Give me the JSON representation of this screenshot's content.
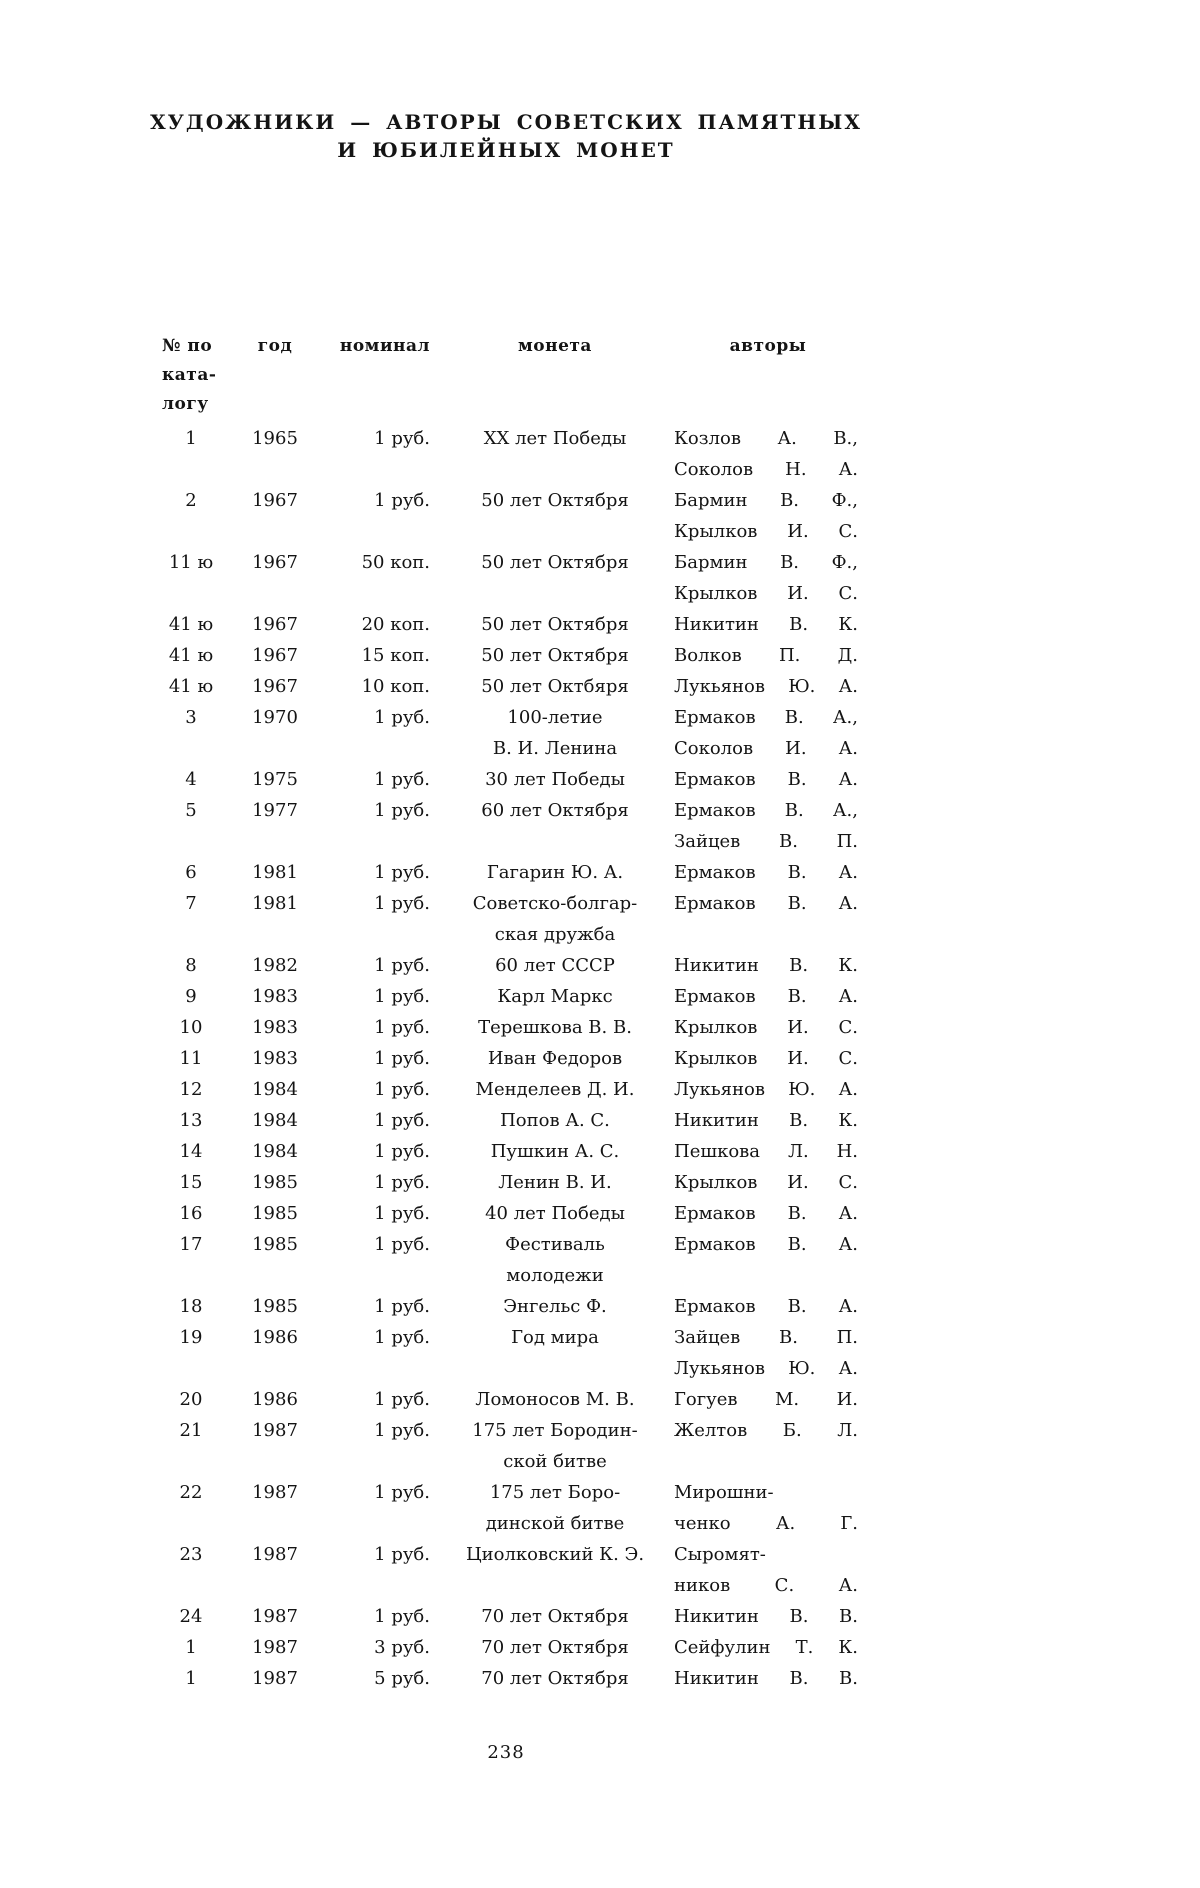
{
  "page": {
    "title_line1": "ХУДОЖНИКИ — АВТОРЫ СОВЕТСКИХ ПАМЯТНЫХ",
    "title_line2": "И ЮБИЛЕЙНЫХ МОНЕТ",
    "page_number": "238"
  },
  "table": {
    "headers": {
      "catalog": [
        "№ по",
        "ката-",
        "логу"
      ],
      "year": "год",
      "denomination": "номинал",
      "coin": "монета",
      "authors": "авторы"
    },
    "rows": [
      {
        "no": "1",
        "year": "1965",
        "denom": "1 руб.",
        "coin": [
          "XX лет Победы"
        ],
        "authors": [
          "Козлов А. В.,",
          "Соколов Н. А."
        ]
      },
      {
        "no": "2",
        "year": "1967",
        "denom": "1 руб.",
        "coin": [
          "50 лет Октября"
        ],
        "authors": [
          "Бармин В. Ф.,",
          "Крылков И. С."
        ]
      },
      {
        "no": "11 ю",
        "year": "1967",
        "denom": "50 коп.",
        "coin": [
          "50 лет Октября"
        ],
        "authors": [
          "Бармин В. Ф.,",
          "Крылков И. С."
        ]
      },
      {
        "no": "41 ю",
        "year": "1967",
        "denom": "20 коп.",
        "coin": [
          "50 лет Октября"
        ],
        "authors": [
          "Никитин В. К."
        ]
      },
      {
        "no": "41 ю",
        "year": "1967",
        "denom": "15 коп.",
        "coin": [
          "50 лет Октября"
        ],
        "authors": [
          "Волков П. Д."
        ]
      },
      {
        "no": "41 ю",
        "year": "1967",
        "denom": "10 коп.",
        "coin": [
          "50 лет Октбяря"
        ],
        "authors": [
          "Лукьянов Ю. А."
        ]
      },
      {
        "no": "3",
        "year": "1970",
        "denom": "1 руб.",
        "coin": [
          "100-летие",
          "В. И. Ленина"
        ],
        "authors": [
          "Ермаков В. А.,",
          "Соколов И. А."
        ]
      },
      {
        "no": "4",
        "year": "1975",
        "denom": "1 руб.",
        "coin": [
          "30 лет Победы"
        ],
        "authors": [
          "Ермаков В. А."
        ]
      },
      {
        "no": "5",
        "year": "1977",
        "denom": "1 руб.",
        "coin": [
          "60 лет Октября"
        ],
        "authors": [
          "Ермаков В. А.,",
          "Зайцев В. П."
        ]
      },
      {
        "no": "6",
        "year": "1981",
        "denom": "1 руб.",
        "coin": [
          "Гагарин Ю. А."
        ],
        "authors": [
          "Ермаков В. А."
        ]
      },
      {
        "no": "7",
        "year": "1981",
        "denom": "1 руб.",
        "coin": [
          "Советско-болгар-",
          "ская дружба"
        ],
        "authors": [
          "Ермаков В. А."
        ]
      },
      {
        "no": "8",
        "year": "1982",
        "denom": "1 руб.",
        "coin": [
          "60 лет СССР"
        ],
        "authors": [
          "Никитин В. К."
        ]
      },
      {
        "no": "9",
        "year": "1983",
        "denom": "1 руб.",
        "coin": [
          "Карл Маркс"
        ],
        "authors": [
          "Ермаков В. А."
        ]
      },
      {
        "no": "10",
        "year": "1983",
        "denom": "1 руб.",
        "coin": [
          "Терешкова В. В."
        ],
        "authors": [
          "Крылков И. С."
        ]
      },
      {
        "no": "11",
        "year": "1983",
        "denom": "1 руб.",
        "coin": [
          "Иван Федоров"
        ],
        "authors": [
          "Крылков И. С."
        ]
      },
      {
        "no": "12",
        "year": "1984",
        "denom": "1 руб.",
        "coin": [
          "Менделеев Д. И."
        ],
        "authors": [
          "Лукьянов Ю. А."
        ]
      },
      {
        "no": "13",
        "year": "1984",
        "denom": "1 руб.",
        "coin": [
          "Попов А. С."
        ],
        "authors": [
          "Никитин В. К."
        ]
      },
      {
        "no": "14",
        "year": "1984",
        "denom": "1 руб.",
        "coin": [
          "Пушкин А. С."
        ],
        "authors": [
          "Пешкова Л. Н."
        ]
      },
      {
        "no": "15",
        "year": "1985",
        "denom": "1 руб.",
        "coin": [
          "Ленин В. И."
        ],
        "authors": [
          "Крылков И. С."
        ]
      },
      {
        "no": "16",
        "year": "1985",
        "denom": "1 руб.",
        "coin": [
          "40 лет Победы"
        ],
        "authors": [
          "Ермаков В. А."
        ]
      },
      {
        "no": "17",
        "year": "1985",
        "denom": "1 руб.",
        "coin": [
          "Фестиваль",
          "молодежи"
        ],
        "authors": [
          "Ермаков В. А."
        ]
      },
      {
        "no": "18",
        "year": "1985",
        "denom": "1 руб.",
        "coin": [
          "Энгельс Ф."
        ],
        "authors": [
          "Ермаков В. А."
        ]
      },
      {
        "no": "19",
        "year": "1986",
        "denom": "1 руб.",
        "coin": [
          "Год мира"
        ],
        "authors": [
          "Зайцев В. П.",
          "Лукьянов Ю. А."
        ]
      },
      {
        "no": "20",
        "year": "1986",
        "denom": "1 руб.",
        "coin": [
          "Ломоносов М. В."
        ],
        "authors": [
          "Гогуев М. И."
        ]
      },
      {
        "no": "21",
        "year": "1987",
        "denom": "1 руб.",
        "coin": [
          "175 лет Бородин-",
          "ской битве"
        ],
        "authors": [
          "Желтов Б. Л."
        ]
      },
      {
        "no": "22",
        "year": "1987",
        "denom": "1 руб.",
        "coin": [
          "175 лет Боро-",
          "динской битве"
        ],
        "authors": [
          "Мирошни-",
          "ченко А. Г."
        ]
      },
      {
        "no": "23",
        "year": "1987",
        "denom": "1 руб.",
        "coin": [
          "Циолковский К. Э."
        ],
        "authors": [
          "Сыромят-",
          "ников С. А."
        ]
      },
      {
        "no": "24",
        "year": "1987",
        "denom": "1 руб.",
        "coin": [
          "70 лет Октября"
        ],
        "authors": [
          "Никитин В. В."
        ]
      },
      {
        "no": "1",
        "year": "1987",
        "denom": "3 руб.",
        "coin": [
          "70 лет Октября"
        ],
        "authors": [
          "Сейфулин Т. К."
        ]
      },
      {
        "no": "1",
        "year": "1987",
        "denom": "5 руб.",
        "coin": [
          "70 лет Октября"
        ],
        "authors": [
          "Никитин В. В."
        ]
      }
    ]
  }
}
